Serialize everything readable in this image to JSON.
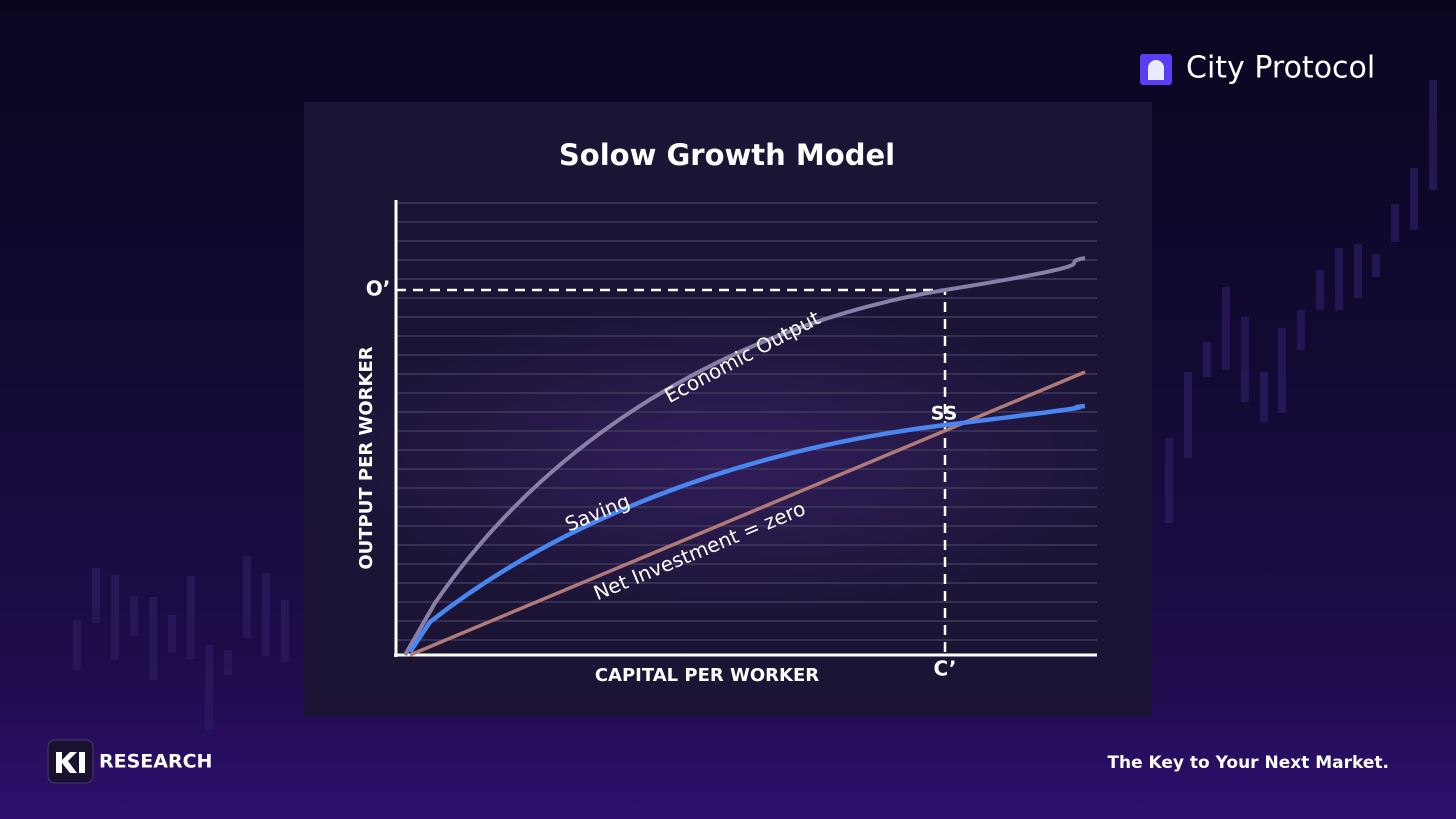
{
  "brand": {
    "name": "City Protocol"
  },
  "chart": {
    "title": "Solow Growth Model",
    "y_axis_label": "OUTPUT PER WORKER",
    "x_axis_label": "CAPITAL PER WORKER",
    "y_marker": "O’",
    "x_marker": "C’",
    "steady_state": "SS",
    "curves": [
      "Economic Output",
      "Saving",
      "Net Investment = zero"
    ]
  },
  "footer": {
    "brand": "RESEARCH",
    "tagline": "The Key to Your Next Market."
  }
}
